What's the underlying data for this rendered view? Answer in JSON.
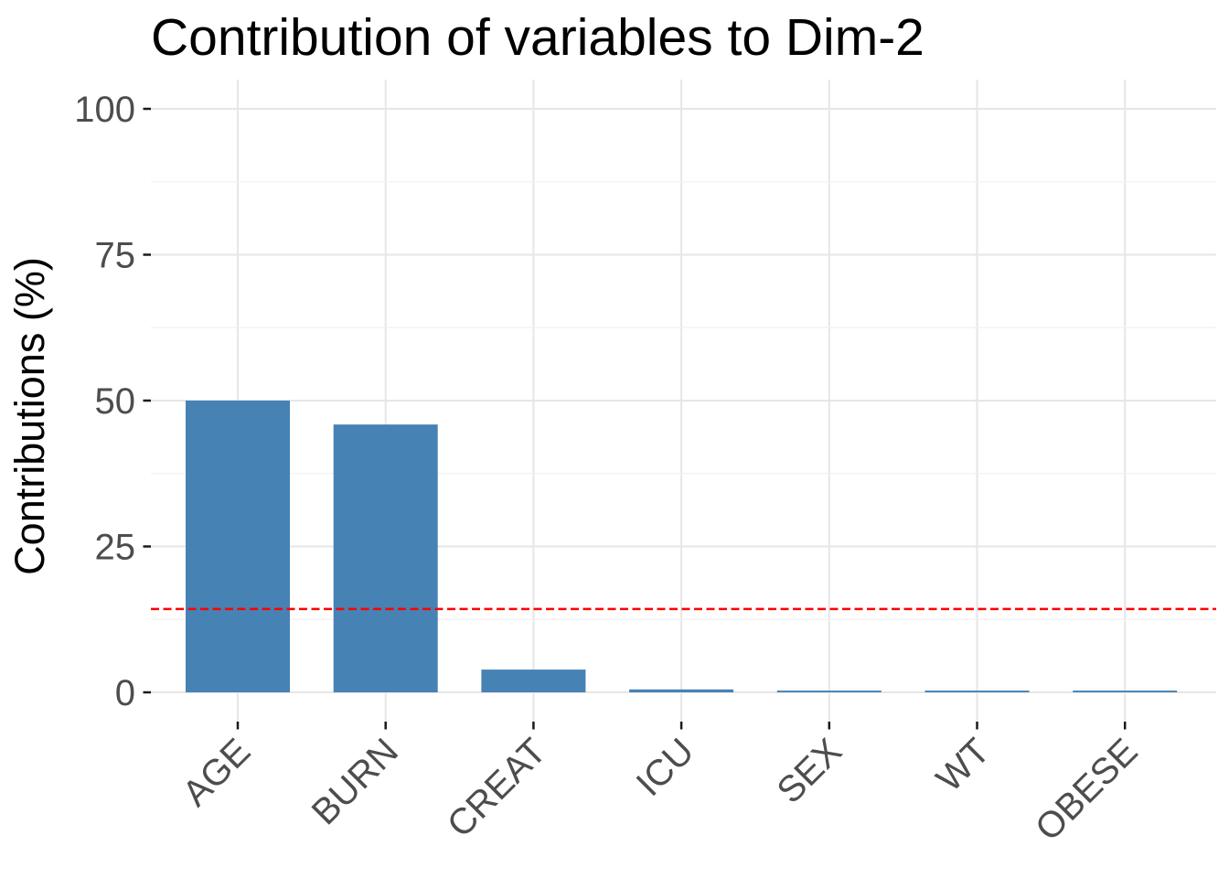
{
  "chart_data": {
    "type": "bar",
    "title": "Contribution of variables to Dim-2",
    "ylabel": "Contributions (%)",
    "xlabel": "",
    "categories": [
      "AGE",
      "BURN",
      "CREAT",
      "ICU",
      "SEX",
      "WT",
      "OBESE"
    ],
    "values": [
      50.0,
      45.9,
      3.9,
      0.5,
      0.3,
      0.3,
      0.3
    ],
    "yticks": [
      0,
      25,
      50,
      75,
      100
    ],
    "y_minor_gridlines": [
      12.5,
      37.5,
      62.5,
      87.5
    ],
    "ylim": [
      0,
      100
    ],
    "x_tick_angle": 45,
    "grid": true,
    "legend_position": "none",
    "reference_line": {
      "value": 14.29,
      "style": "dashed",
      "color": "#FF0000"
    },
    "bar_color": "#4682B4",
    "colors": {
      "background": "#FFFFFF",
      "title": "#000000",
      "axis_label": "#000000",
      "tick_label": "#4D4D4D",
      "tick_mark": "#1A1A1A",
      "grid_major": "#E6E6E6",
      "grid_minor": "#F2F2F2"
    }
  }
}
